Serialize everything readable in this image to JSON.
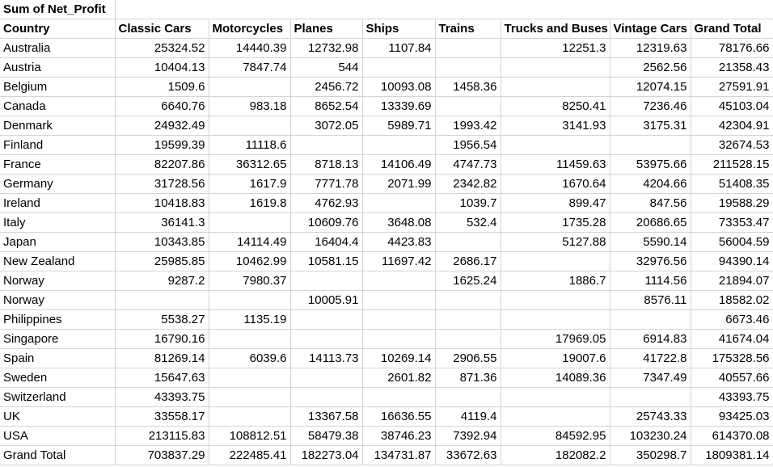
{
  "pivot": {
    "title": "Sum of Net_Profit",
    "columns": [
      "Country",
      "Classic Cars",
      "Motorcycles",
      "Planes",
      "Ships",
      "Trains",
      "Trucks and Buses",
      "Vintage Cars",
      "Grand Total"
    ],
    "rows": [
      [
        "Australia",
        "25324.52",
        "14440.39",
        "12732.98",
        "1107.84",
        "",
        "12251.3",
        "12319.63",
        "78176.66"
      ],
      [
        "Austria",
        "10404.13",
        "7847.74",
        "544",
        "",
        "",
        "",
        "2562.56",
        "21358.43"
      ],
      [
        "Belgium",
        "1509.6",
        "",
        "2456.72",
        "10093.08",
        "1458.36",
        "",
        "12074.15",
        "27591.91"
      ],
      [
        "Canada",
        "6640.76",
        "983.18",
        "8652.54",
        "13339.69",
        "",
        "8250.41",
        "7236.46",
        "45103.04"
      ],
      [
        "Denmark",
        "24932.49",
        "",
        "3072.05",
        "5989.71",
        "1993.42",
        "3141.93",
        "3175.31",
        "42304.91"
      ],
      [
        "Finland",
        "19599.39",
        "11118.6",
        "",
        "",
        "1956.54",
        "",
        "",
        "32674.53"
      ],
      [
        "France",
        "82207.86",
        "36312.65",
        "8718.13",
        "14106.49",
        "4747.73",
        "11459.63",
        "53975.66",
        "211528.15"
      ],
      [
        "Germany",
        "31728.56",
        "1617.9",
        "7771.78",
        "2071.99",
        "2342.82",
        "1670.64",
        "4204.66",
        "51408.35"
      ],
      [
        "Ireland",
        "10418.83",
        "1619.8",
        "4762.93",
        "",
        "1039.7",
        "899.47",
        "847.56",
        "19588.29"
      ],
      [
        "Italy",
        "36141.3",
        "",
        "10609.76",
        "3648.08",
        "532.4",
        "1735.28",
        "20686.65",
        "73353.47"
      ],
      [
        "Japan",
        "10343.85",
        "14114.49",
        "16404.4",
        "4423.83",
        "",
        "5127.88",
        "5590.14",
        "56004.59"
      ],
      [
        "New Zealand",
        "25985.85",
        "10462.99",
        "10581.15",
        "11697.42",
        "2686.17",
        "",
        "32976.56",
        "94390.14"
      ],
      [
        "Norway",
        "9287.2",
        "7980.37",
        "",
        "",
        "1625.24",
        "1886.7",
        "1114.56",
        "21894.07"
      ],
      [
        "Norway ",
        "",
        "",
        "10005.91",
        "",
        "",
        "",
        "8576.11",
        "18582.02"
      ],
      [
        "Philippines",
        "5538.27",
        "1135.19",
        "",
        "",
        "",
        "",
        "",
        "6673.46"
      ],
      [
        "Singapore",
        "16790.16",
        "",
        "",
        "",
        "",
        "17969.05",
        "6914.83",
        "41674.04"
      ],
      [
        "Spain",
        "81269.14",
        "6039.6",
        "14113.73",
        "10269.14",
        "2906.55",
        "19007.6",
        "41722.8",
        "175328.56"
      ],
      [
        "Sweden",
        "15647.63",
        "",
        "",
        "2601.82",
        "871.36",
        "14089.36",
        "7347.49",
        "40557.66"
      ],
      [
        "Switzerland",
        "43393.75",
        "",
        "",
        "",
        "",
        "",
        "",
        "43393.75"
      ],
      [
        "UK",
        "33558.17",
        "",
        "13367.58",
        "16636.55",
        "4119.4",
        "",
        "25743.33",
        "93425.03"
      ],
      [
        "USA",
        "213115.83",
        "108812.51",
        "58479.38",
        "38746.23",
        "7392.94",
        "84592.95",
        "103230.24",
        "614370.08"
      ]
    ],
    "grand_total": [
      "Grand Total",
      "703837.29",
      "222485.41",
      "182273.04",
      "134731.87",
      "33672.63",
      "182082.2",
      "350298.7",
      "1809381.14"
    ]
  }
}
